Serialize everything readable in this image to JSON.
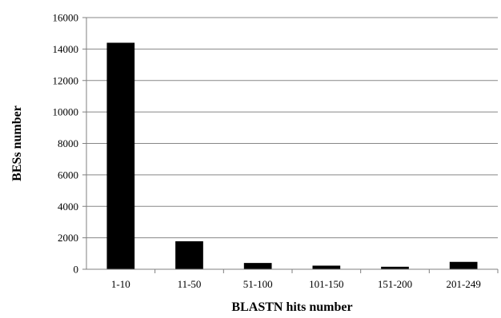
{
  "chart_data": {
    "type": "bar",
    "title": "",
    "xlabel": "BLASTN hits number",
    "ylabel": "BESs number",
    "categories": [
      "1-10",
      "11-50",
      "51-100",
      "101-150",
      "151-200",
      "201-249"
    ],
    "values": [
      14400,
      1780,
      400,
      230,
      160,
      470
    ],
    "ylim": [
      0,
      16000
    ],
    "yticks": [
      0,
      2000,
      4000,
      6000,
      8000,
      10000,
      12000,
      14000,
      16000
    ],
    "grid": true,
    "legend": "none",
    "bar_color": "#000000",
    "grid_color": "#878787"
  }
}
